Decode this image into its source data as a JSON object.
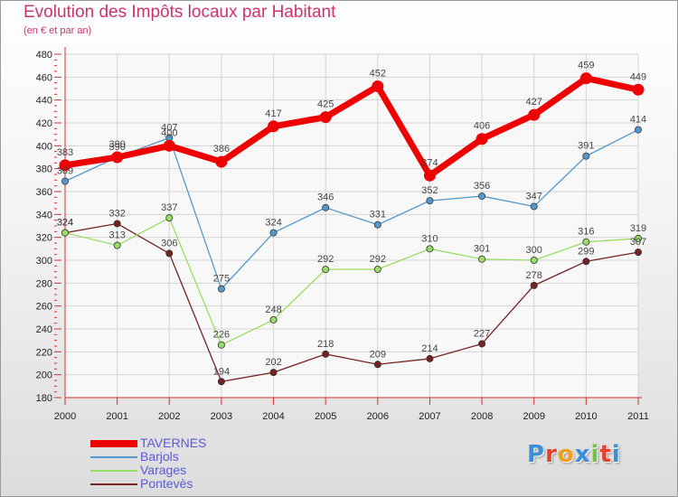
{
  "header": {
    "title": "Evolution des Impôts locaux par Habitant",
    "subtitle": "(en € et par an)"
  },
  "logo": {
    "text": "Proxiti",
    "letter_colors": [
      "#3a8fd8",
      "#e8402a",
      "#f0a020",
      "#3a8fd8",
      "#7ac043",
      "#e8402a",
      "#3a8fd8"
    ]
  },
  "chart_data": {
    "type": "line",
    "title": "Evolution des Impôts locaux par Habitant",
    "subtitle": "(en € et par an)",
    "xlabel": "",
    "ylabel": "",
    "x": [
      2000,
      2001,
      2002,
      2003,
      2004,
      2005,
      2006,
      2007,
      2008,
      2009,
      2010,
      2011
    ],
    "ylim": [
      180,
      480
    ],
    "yticks": [
      180,
      200,
      220,
      240,
      260,
      280,
      300,
      320,
      340,
      360,
      380,
      400,
      420,
      440,
      460,
      480
    ],
    "grid": true,
    "legend_position": "bottom-left",
    "series": [
      {
        "name": "TAVERNES",
        "color": "#ee0000",
        "emphasis": "thick",
        "values": [
          383,
          390,
          400,
          386,
          417,
          425,
          452,
          374,
          406,
          427,
          459,
          449
        ]
      },
      {
        "name": "Barjols",
        "color": "#5599cc",
        "emphasis": "thin",
        "values": [
          369,
          390,
          407,
          275,
          324,
          346,
          331,
          352,
          356,
          347,
          391,
          414
        ]
      },
      {
        "name": "Varages",
        "color": "#99dd66",
        "emphasis": "thin",
        "values": [
          324,
          313,
          337,
          226,
          248,
          292,
          292,
          310,
          301,
          300,
          316,
          319
        ]
      },
      {
        "name": "Pontevès",
        "color": "#772222",
        "emphasis": "thin",
        "values": [
          324,
          332,
          306,
          194,
          202,
          218,
          209,
          214,
          227,
          278,
          299,
          307
        ]
      }
    ]
  }
}
